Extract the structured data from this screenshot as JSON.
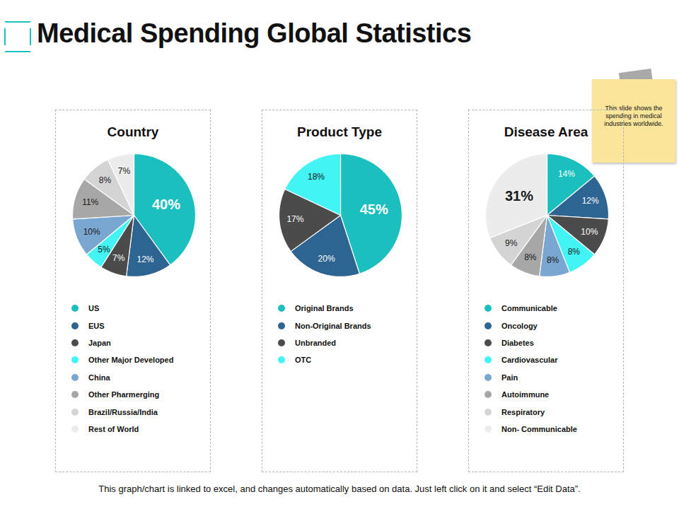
{
  "title": "Medical Spending Global Statistics",
  "note": "This slide shows the spending in medical industries worldwide.",
  "footer": "This graph/chart is linked to excel, and changes automatically based on data. Just left click on it and select “Edit Data”.",
  "chart_data": [
    {
      "type": "pie",
      "title": "Country",
      "categories": [
        "US",
        "EUS",
        "Japan",
        "Other Major Developed",
        "China",
        "Other Pharmerging",
        "Brazil/Russia/India",
        "Rest of World"
      ],
      "values": [
        40,
        12,
        7,
        5,
        10,
        11,
        8,
        7
      ],
      "value_labels": [
        "40%",
        "12%",
        "7%",
        "5%",
        "10%",
        "11%",
        "8%",
        "7%"
      ],
      "colors": [
        "#1bbfbd",
        "#2e6492",
        "#4b4b4b",
        "#43f4f4",
        "#7aa6d2",
        "#a7a7a7",
        "#d4d4d4",
        "#ececec"
      ],
      "data_labels": true,
      "legend": "bottom"
    },
    {
      "type": "pie",
      "title": "Product Type",
      "categories": [
        "Original Brands",
        "Non-Original Brands",
        "Unbranded",
        "OTC"
      ],
      "values": [
        45,
        20,
        17,
        18
      ],
      "value_labels": [
        "45%",
        "20%",
        "17%",
        "18%"
      ],
      "colors": [
        "#1bbfbd",
        "#2e6492",
        "#4b4b4b",
        "#43f4f4"
      ],
      "data_labels": true,
      "legend": "bottom"
    },
    {
      "type": "pie",
      "title": "Disease Area",
      "categories": [
        "Communicable",
        "Oncology",
        "Diabetes",
        "Cardiovascular",
        "Pain",
        "Autoimmune",
        "Respiratory",
        "Non- Communicable"
      ],
      "values": [
        14,
        12,
        10,
        8,
        8,
        8,
        9,
        31
      ],
      "value_labels": [
        "14%",
        "12%",
        "10%",
        "8%",
        "8%",
        "8%",
        "9%",
        "31%"
      ],
      "colors": [
        "#1bbfbd",
        "#2e6492",
        "#4b4b4b",
        "#43f4f4",
        "#7aa6d2",
        "#a7a7a7",
        "#d4d4d4",
        "#ececec"
      ],
      "data_labels": true,
      "legend": "bottom"
    }
  ]
}
